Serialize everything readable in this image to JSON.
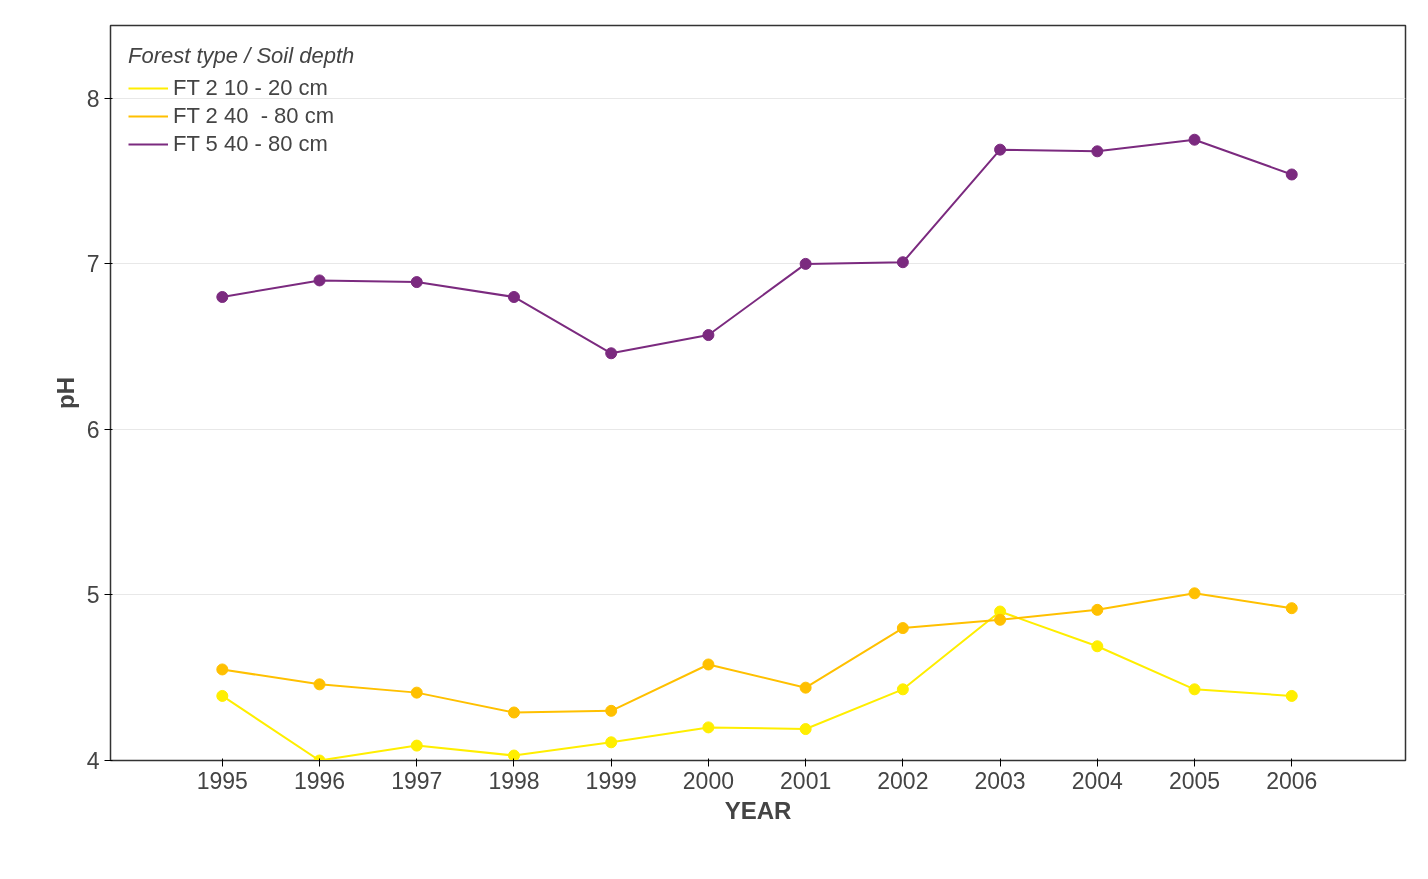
{
  "chart_data": {
    "type": "line",
    "xlabel": "YEAR",
    "ylabel": "pH",
    "legend_title": "Forest type / Soil depth",
    "x": [
      1995,
      1996,
      1997,
      1998,
      1999,
      2000,
      2001,
      2002,
      2003,
      2004,
      2005,
      2006
    ],
    "series": [
      {
        "name": "FT 2 10 - 20 cm",
        "color": "#ffee00",
        "values": [
          4.39,
          4.0,
          4.09,
          4.03,
          4.11,
          4.2,
          4.19,
          4.43,
          4.9,
          4.69,
          4.43,
          4.39
        ]
      },
      {
        "name": "FT 2 40  - 80 cm",
        "color": "#ffc000",
        "values": [
          4.55,
          4.46,
          4.41,
          4.29,
          4.3,
          4.58,
          4.44,
          4.8,
          4.85,
          4.91,
          5.01,
          4.92
        ]
      },
      {
        "name": "FT 5 40 - 80 cm",
        "color": "#7b2a7f",
        "values": [
          6.8,
          6.9,
          6.89,
          6.8,
          6.46,
          6.57,
          7.0,
          7.01,
          7.69,
          7.68,
          7.75,
          7.54
        ]
      }
    ],
    "xlim": [
      1993.85,
      2007.17
    ],
    "ylim": [
      4,
      8.44
    ],
    "xticks": [
      1995,
      1996,
      1997,
      1998,
      1999,
      2000,
      2001,
      2002,
      2003,
      2004,
      2005,
      2006
    ],
    "yticks": [
      4,
      5,
      6,
      7,
      8
    ],
    "grid": "y",
    "legend": "top left",
    "marker": "circle",
    "line_style": "solid"
  }
}
